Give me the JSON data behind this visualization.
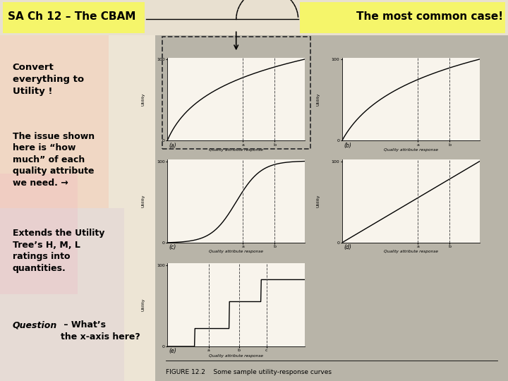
{
  "title_left": "SA Ch 12 – The CBAM",
  "title_right": "The most common case!",
  "header_bg": "#f5f56a",
  "slide_bg": "#e8e0d0",
  "left_bg": "#f0e8d8",
  "text1": "Convert\neverything to\nUtility !",
  "text2": "The issue shown\nhere is “how\nmuch” of each\nquality attribute\nwe need. →",
  "text3": "Extends the Utility\nTree’s H, M, L\nratings into\nquantities.",
  "text4_italic": "Question",
  "text4_rest": " – What’s\nthe x-axis here?",
  "fig_caption": "FIGURE 12.2    Some sample utility-response curves",
  "panel_bg": "#b8b4a8",
  "plot_bg": "#f8f4ec",
  "dashed_box_color": "#333333"
}
